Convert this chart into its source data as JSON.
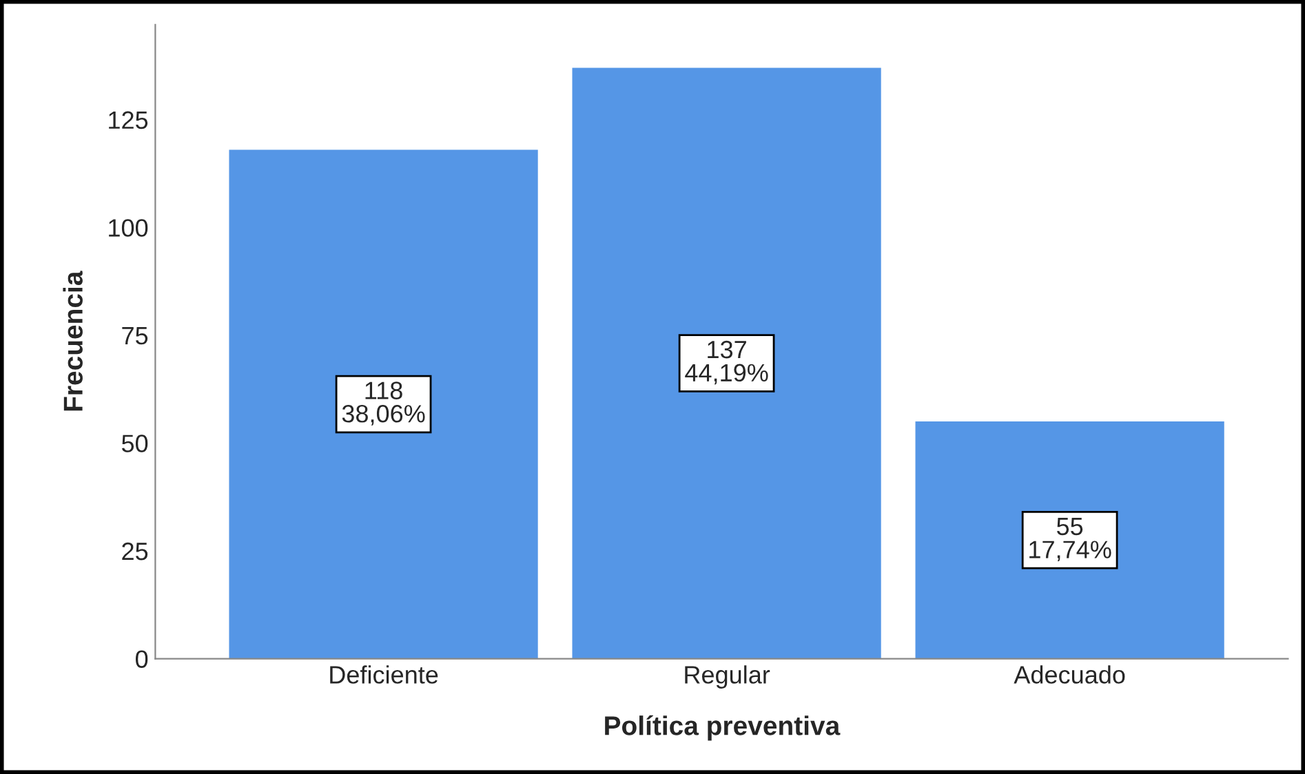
{
  "chart_data": {
    "type": "bar",
    "xlabel": "Política preventiva",
    "ylabel": "Frecuencia",
    "categories": [
      "Deficiente",
      "Regular",
      "Adecuado"
    ],
    "values": [
      118,
      137,
      55
    ],
    "value_labels": [
      "118\n38,06%",
      "137\n44,19%",
      "55\n17,74%"
    ],
    "color": "#5596e6",
    "ylim": [
      0,
      147
    ],
    "yticks": [
      0,
      25,
      50,
      75,
      100,
      125
    ],
    "grid": false,
    "legend": false
  }
}
